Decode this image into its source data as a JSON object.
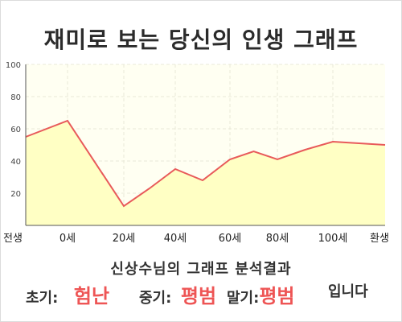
{
  "title": "재미로 보는 당신의 인생 그래프",
  "colors": {
    "line": "#e85a5a",
    "fill": "#ffffc4",
    "plot_bg": "#fffff2",
    "grid": "#e8e8d8",
    "accent_text": "#ee5555"
  },
  "chart_data": {
    "type": "area",
    "x_ticks": [
      "전생",
      "0세",
      "20세",
      "40세",
      "60세",
      "80세",
      "100세",
      "환생"
    ],
    "y_ticks": [
      "20",
      "40",
      "60",
      "80",
      "100"
    ],
    "ylim": [
      0,
      100
    ],
    "grid": true,
    "series": [
      {
        "points": [
          [
            "전생",
            55
          ],
          [
            "0세",
            65
          ],
          [
            "20세",
            12
          ],
          [
            "30세",
            23
          ],
          [
            "40세",
            35
          ],
          [
            "50세",
            28
          ],
          [
            "60세",
            41
          ],
          [
            "70세",
            46
          ],
          [
            "80세",
            41
          ],
          [
            "90세",
            47
          ],
          [
            "100세",
            52
          ],
          [
            "환생",
            50
          ]
        ]
      }
    ]
  },
  "result": {
    "heading": "신상수님의 그래프 분석결과",
    "early_label": "초기:",
    "early_value": "험난",
    "mid_label": "중기:",
    "mid_value": "평범",
    "late_label": "말기:",
    "late_value": "평범",
    "ending": "입니다"
  }
}
